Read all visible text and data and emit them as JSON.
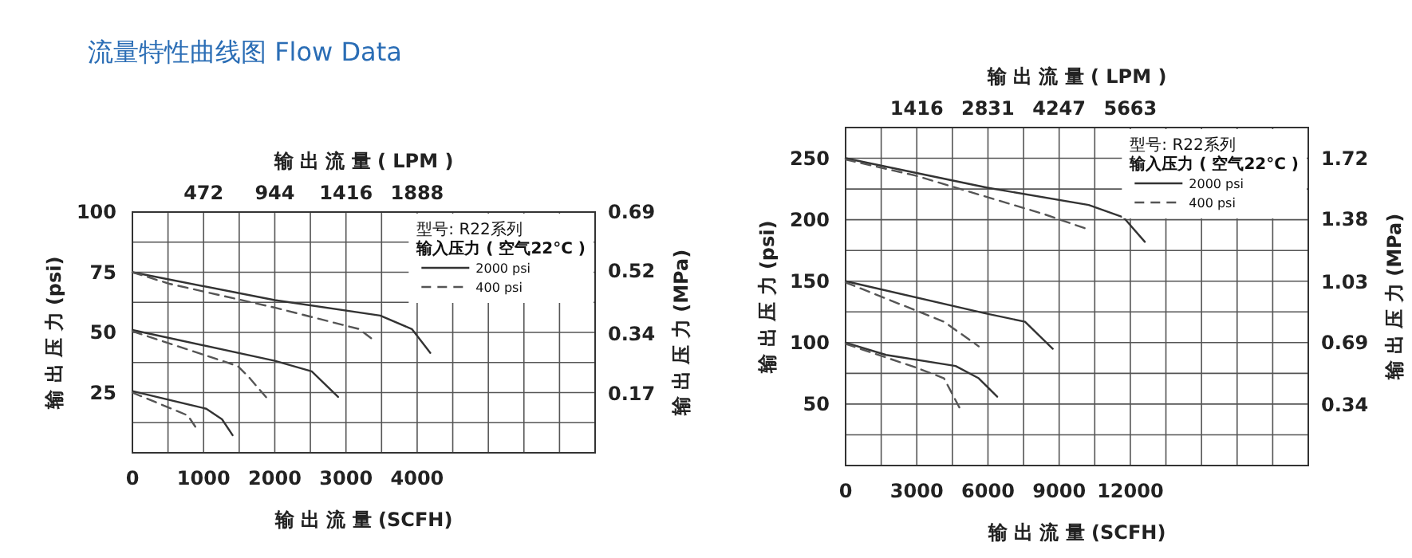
{
  "chart_data": [
    {
      "type": "line",
      "title": "流量特性曲线图 Flow Data",
      "xlabel": "输 出 流 量 (SCFH)",
      "x2label": "输 出 流 量 ( LPM )",
      "ylabel": "输 出 压 力 (psi)",
      "y2label": "输 出 压 力 (MPa)",
      "legend_title": "输入压力 ( 空气22°C )",
      "annotations": [
        "型号: R22系列"
      ],
      "legend": "top right",
      "grid": true,
      "xlim": [
        0,
        6500
      ],
      "xticks": [
        0,
        {
          "value": 500,
          "label": null
        },
        1000,
        {
          "value": 1500,
          "label": null
        },
        2000,
        {
          "value": 2500,
          "label": null
        },
        3000,
        {
          "value": 3500,
          "label": null
        },
        4000,
        {
          "value": 4500,
          "label": null
        },
        {
          "value": 5000,
          "label": null
        },
        {
          "value": 5500,
          "label": null
        },
        {
          "value": 6000,
          "label": null
        }
      ],
      "x2lim": [
        0,
        3068
      ],
      "x2ticks": [
        472,
        944,
        1416,
        1888
      ],
      "ylim": [
        0,
        100
      ],
      "yticks": [
        {
          "value": 0,
          "label": null
        },
        {
          "value": 12.5,
          "label": null
        },
        25,
        {
          "value": 37.5,
          "label": null
        },
        50,
        {
          "value": 62.5,
          "label": null
        },
        75,
        {
          "value": 87.5,
          "label": null
        },
        100
      ],
      "y2lim": [
        0,
        0.69
      ],
      "y2ticks": [
        0.17,
        0.34,
        0.52,
        0.69
      ],
      "series": [
        {
          "name": "2000 psi",
          "color": "#333333",
          "line_style": "solid",
          "x": [
            0,
            2000,
            3481,
            3926,
            4185
          ],
          "values": [
            75,
            63.4,
            57,
            51.4,
            41.5
          ]
        },
        {
          "name": "400 psi",
          "color": "#555555",
          "line_style": "dashed",
          "x": [
            0,
            519,
            2000,
            3185,
            3407
          ],
          "values": [
            75,
            70.2,
            60.3,
            51.4,
            46.4
          ]
        },
        {
          "color": "#333333",
          "line_style": "solid",
          "x": [
            0,
            2000,
            2519,
            2889
          ],
          "values": [
            51,
            38.2,
            33.8,
            23.2
          ]
        },
        {
          "color": "#555555",
          "line_style": "dashed",
          "x": [
            0,
            1481,
            1630,
            1889
          ],
          "values": [
            50.5,
            36,
            31.6,
            22.7
          ]
        },
        {
          "color": "#333333",
          "line_style": "solid",
          "x": [
            0,
            1037,
            1259,
            1407
          ],
          "values": [
            25.6,
            18.3,
            13.9,
            7.3
          ]
        },
        {
          "color": "#555555",
          "line_style": "dashed",
          "x": [
            0,
            778,
            889
          ],
          "values": [
            25,
            15.5,
            10.6
          ]
        }
      ]
    },
    {
      "type": "line",
      "xlabel": "输 出 流 量 (SCFH)",
      "x2label": "输 出 流 量 ( LPM )",
      "ylabel": "输 出 压 力 (psi)",
      "y2label": "输 出 压 力 (MPa)",
      "legend_title": "输入压力 ( 空气22°C )",
      "annotations": [
        "型号: R22系列"
      ],
      "legend": "top right",
      "grid": true,
      "xlim": [
        0,
        19500
      ],
      "xticks": [
        0,
        {
          "value": 1500,
          "label": null
        },
        3000,
        {
          "value": 4500,
          "label": null
        },
        6000,
        {
          "value": 7500,
          "label": null
        },
        9000,
        {
          "value": 10500,
          "label": null
        },
        12000,
        {
          "value": 13500,
          "label": null
        },
        {
          "value": 15000,
          "label": null
        },
        {
          "value": 16500,
          "label": null
        },
        {
          "value": 18000,
          "label": null
        }
      ],
      "x2lim": [
        0,
        9204
      ],
      "x2ticks": [
        1416,
        2831,
        4247,
        5663
      ],
      "ylim": [
        0,
        275
      ],
      "yticks": [
        {
          "value": 0,
          "label": null
        },
        {
          "value": 25,
          "label": null
        },
        50,
        {
          "value": 75,
          "label": null
        },
        100,
        {
          "value": 125,
          "label": null
        },
        150,
        {
          "value": 175,
          "label": null
        },
        200,
        {
          "value": 225,
          "label": null
        },
        250
      ],
      "y2lim": [
        0,
        1.896
      ],
      "y2ticks": [
        0.34,
        0.69,
        1.03,
        1.38,
        1.72
      ],
      "series": [
        {
          "name": "2000 psi",
          "color": "#333333",
          "line_style": "solid",
          "x": [
            0,
            5976,
            10244,
            11707,
            12610
          ],
          "values": [
            250,
            226,
            212,
            202,
            182
          ]
        },
        {
          "name": "400 psi",
          "color": "#555555",
          "line_style": "dashed",
          "x": [
            0,
            2927,
            8293,
            10244
          ],
          "values": [
            249,
            236,
            205,
            192
          ]
        },
        {
          "color": "#333333",
          "line_style": "solid",
          "x": [
            0,
            5854,
            7561,
            8732
          ],
          "values": [
            150,
            124,
            117,
            95
          ]
        },
        {
          "color": "#555555",
          "line_style": "dashed",
          "x": [
            0,
            4146,
            5610
          ],
          "values": [
            149,
            117,
            97
          ]
        },
        {
          "color": "#333333",
          "line_style": "solid",
          "x": [
            0,
            1707,
            4634,
            5610,
            6390
          ],
          "values": [
            100,
            90,
            81,
            71,
            56
          ]
        },
        {
          "color": "#555555",
          "line_style": "dashed",
          "x": [
            0,
            2927,
            4146,
            4829
          ],
          "values": [
            99,
            80,
            71,
            46
          ]
        }
      ]
    }
  ]
}
